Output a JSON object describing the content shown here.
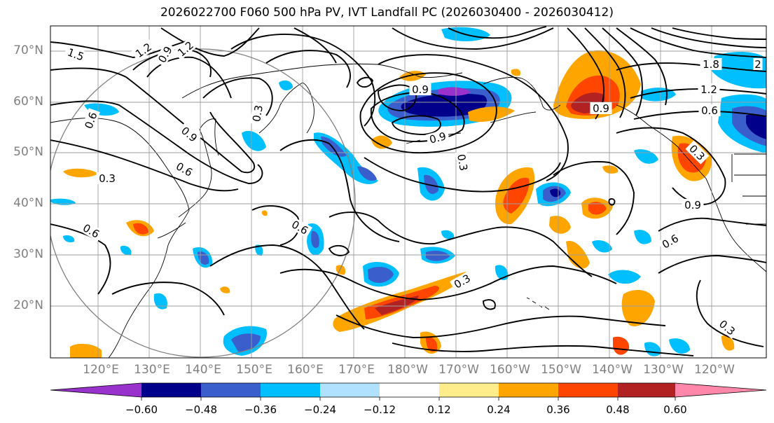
{
  "title": "2026022700 F060 500 hPa PV, IVT Landfall PC (2026030400 - 2026030412)",
  "lat_labels": [
    "70°N",
    "60°N",
    "50°N",
    "40°N",
    "30°N",
    "20°N"
  ],
  "lon_labels": [
    "120°E",
    "130°E",
    "140°E",
    "150°E",
    "160°E",
    "170°E",
    "180°W",
    "170°W",
    "160°W",
    "150°W",
    "140°W",
    "130°W",
    "120°W"
  ],
  "contour_labels": [
    "1.5",
    "1.2",
    "0.9",
    "1.2",
    "0.9",
    "0.6",
    "0.3",
    "0.3",
    "0.6",
    "0.6",
    "0.9",
    "0.3",
    "0.9",
    "1.2",
    "0.6",
    "1.8",
    "2",
    "0.9",
    "0.3",
    "0.6",
    "0.9",
    "0.3",
    "0.3",
    "0.6"
  ],
  "colorbar": {
    "ticks": [
      "−0.60",
      "−0.48",
      "−0.36",
      "−0.24",
      "−0.12",
      "0.12",
      "0.24",
      "0.36",
      "0.48",
      "0.60"
    ],
    "colors": [
      "#9932CC",
      "#00008B",
      "#3A5FCD",
      "#00BFFF",
      "#B0E2FF",
      "#FFFFFF",
      "#FFEC8B",
      "#FFA500",
      "#FF4500",
      "#B22222",
      "#FF88AA"
    ]
  },
  "colors": {
    "contour": "#000000",
    "grid": "#9e9e9e",
    "circle": "#7f7f7f",
    "tick_text": "#808080"
  }
}
